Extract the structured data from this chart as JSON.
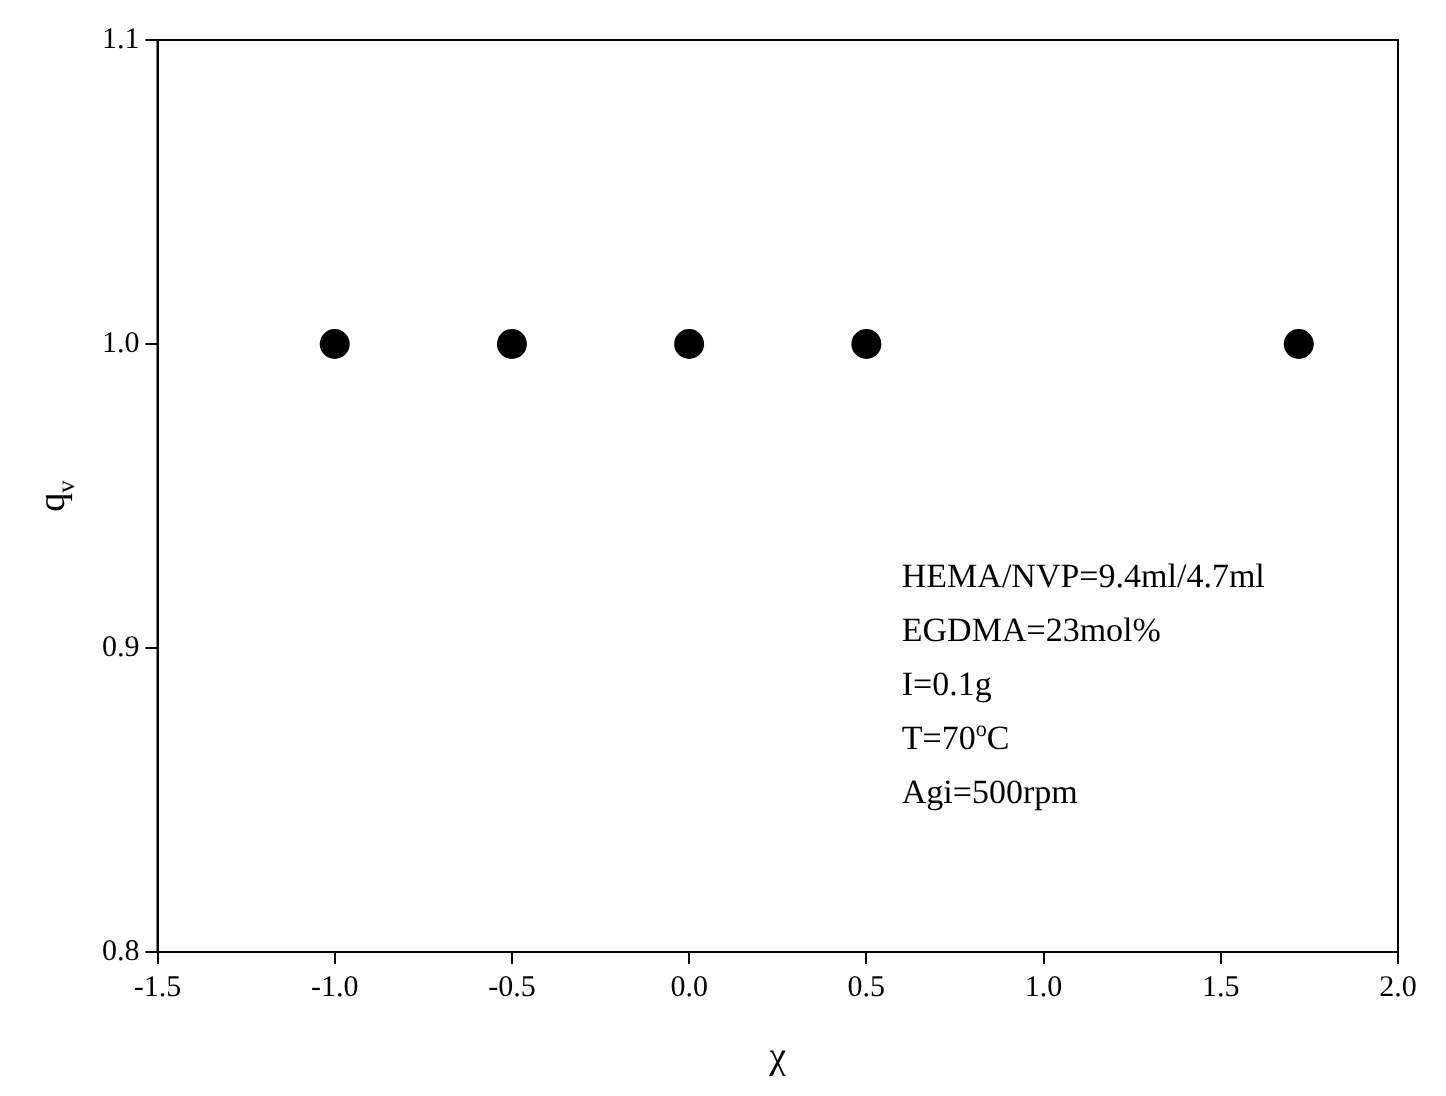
{
  "chart_data": {
    "type": "scatter",
    "xlabel": "χ",
    "ylabel": "q$_{v}$",
    "x": [
      -1.0,
      -0.5,
      0.0,
      0.5,
      1.72
    ],
    "series": [
      {
        "color": "#000000",
        "values": [
          1.0,
          1.0,
          1.0,
          1.0,
          1.0
        ]
      }
    ],
    "xlim": [
      -1.5,
      2.0
    ],
    "xticks": [
      -1.5,
      {
        "value": -1,
        "label": "-1.0"
      },
      -0.5,
      {
        "value": 0,
        "label": "0.0"
      },
      0.5,
      {
        "value": 1,
        "label": "1.0"
      },
      1.5,
      {
        "value": 2,
        "label": "2.0"
      }
    ],
    "ylim": [
      0.8,
      1.1
    ],
    "yticks": [
      0.8,
      0.9,
      {
        "value": 1,
        "label": "1.0"
      },
      1.1
    ],
    "marker": "circle",
    "grid": false,
    "legend": false,
    "annotations": [
      "HEMA/NVP=9.4ml/4.7ml",
      "EGDMA=23mol%",
      "I=0.1g",
      "T=70$^{o}$C",
      "Agi=500rpm"
    ]
  }
}
